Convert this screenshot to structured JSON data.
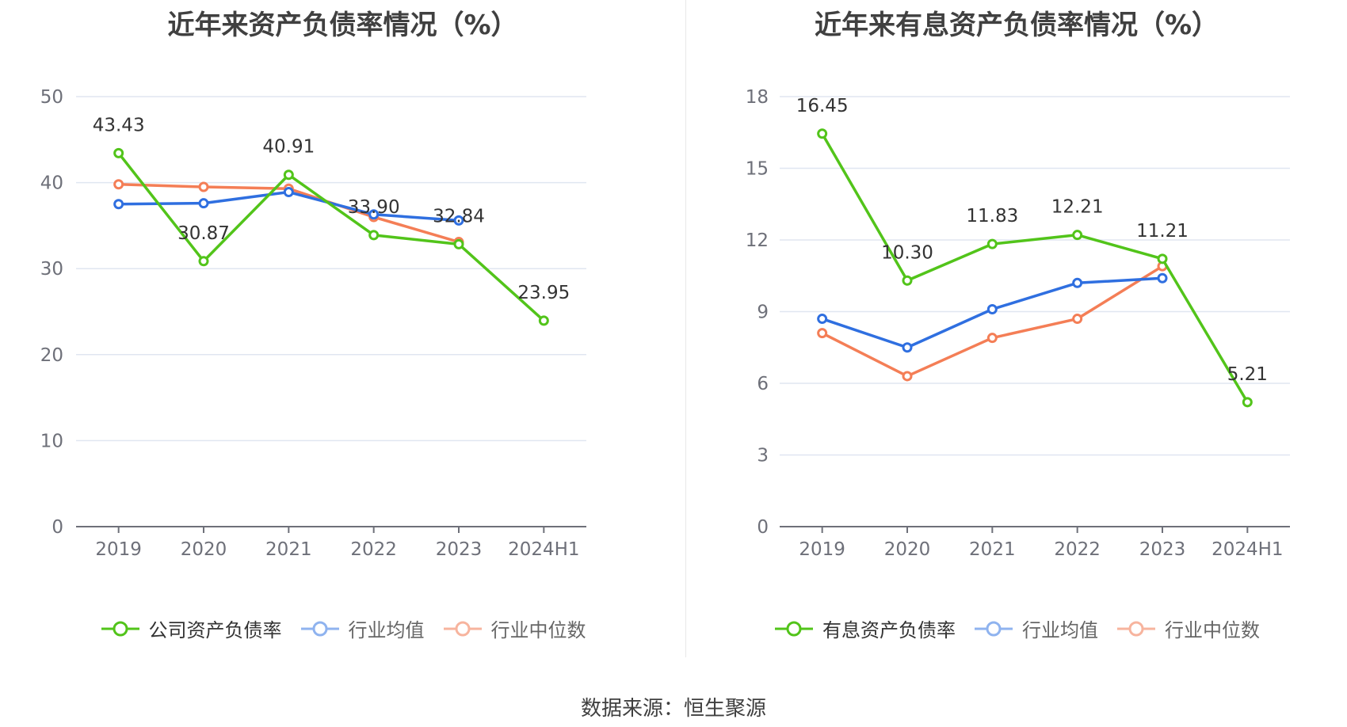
{
  "chart_data": [
    {
      "type": "line",
      "title": "近年来资产负债率情况（%）",
      "categories": [
        "2019",
        "2020",
        "2021",
        "2022",
        "2023",
        "2024H1"
      ],
      "ylim": [
        0,
        50
      ],
      "yticks": [
        0,
        10,
        20,
        30,
        40,
        50
      ],
      "series": [
        {
          "name": "公司资产负债率",
          "color": "#52c41a",
          "values": [
            43.43,
            30.87,
            40.91,
            33.9,
            32.84,
            23.95
          ],
          "labels": [
            "43.43",
            "30.87",
            "40.91",
            "33.90",
            "32.84",
            "23.95"
          ]
        },
        {
          "name": "行业均值",
          "color": "#2f6fe0",
          "values": [
            37.5,
            37.6,
            38.9,
            36.3,
            35.6,
            null
          ]
        },
        {
          "name": "行业中位数",
          "color": "#f47e56",
          "values": [
            39.8,
            39.5,
            39.3,
            36.0,
            33.1,
            null
          ]
        }
      ]
    },
    {
      "type": "line",
      "title": "近年来有息资产负债率情况（%）",
      "categories": [
        "2019",
        "2020",
        "2021",
        "2022",
        "2023",
        "2024H1"
      ],
      "ylim": [
        0,
        18
      ],
      "yticks": [
        0,
        3,
        6,
        9,
        12,
        15,
        18
      ],
      "series": [
        {
          "name": "有息资产负债率",
          "color": "#52c41a",
          "values": [
            16.45,
            10.3,
            11.83,
            12.21,
            11.21,
            5.21
          ],
          "labels": [
            "16.45",
            "10.30",
            "11.83",
            "12.21",
            "11.21",
            "5.21"
          ]
        },
        {
          "name": "行业均值",
          "color": "#2f6fe0",
          "values": [
            8.7,
            7.5,
            9.1,
            10.2,
            10.4,
            null
          ]
        },
        {
          "name": "行业中位数",
          "color": "#f47e56",
          "values": [
            8.1,
            6.3,
            7.9,
            8.7,
            10.9,
            null
          ]
        }
      ]
    }
  ],
  "legend_colors": {
    "green": "#52c41a",
    "blue_muted": "#8fb3ef",
    "orange_muted": "#f7b49e"
  },
  "source": "数据来源：恒生聚源"
}
